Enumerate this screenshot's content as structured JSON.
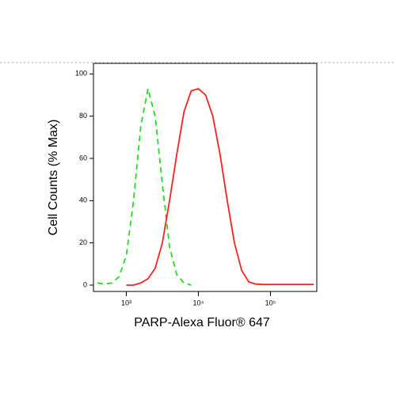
{
  "chart_data": {
    "type": "line",
    "log_x": true,
    "xlabel": "PARP-Alexa Fluor® 647",
    "ylabel": "Cell Counts (% Max)",
    "x": [
      398,
      501,
      631,
      794,
      1000,
      1259,
      1585,
      1995,
      2512,
      3162,
      3981,
      5012,
      6310,
      7943,
      10000,
      12589,
      15849,
      19953,
      25119,
      31623,
      39811,
      50119,
      63096,
      79433,
      100000,
      125893,
      158489,
      199526,
      251189,
      316228,
      398107
    ],
    "series": [
      {
        "color": "#22dd22",
        "dashed": true,
        "values": [
          1,
          0.5,
          1,
          4,
          14,
          40,
          75,
          93,
          80,
          48,
          18,
          5,
          1,
          0,
          null,
          null,
          null,
          null,
          null,
          null,
          null,
          null,
          null,
          null,
          null,
          null,
          null,
          null,
          null,
          null,
          null
        ]
      },
      {
        "color": "#ff2020",
        "dashed": false,
        "values": [
          null,
          null,
          null,
          null,
          0,
          0,
          1,
          3,
          8,
          20,
          40,
          62,
          82,
          92,
          93,
          90,
          80,
          62,
          40,
          20,
          7,
          1.5,
          0.5,
          0.3,
          0.3,
          0.3,
          0.3,
          0.3,
          0.3,
          0.3,
          0.3
        ]
      }
    ],
    "xlim": [
      350,
      440000
    ],
    "ylim": [
      -3,
      105
    ],
    "xticks": [
      {
        "value": 1000,
        "label": "10³"
      },
      {
        "value": 10000,
        "label": "10⁴"
      },
      {
        "value": 100000,
        "label": "10⁵"
      }
    ],
    "yticks": [
      0,
      20,
      40,
      60,
      80,
      100
    ]
  }
}
